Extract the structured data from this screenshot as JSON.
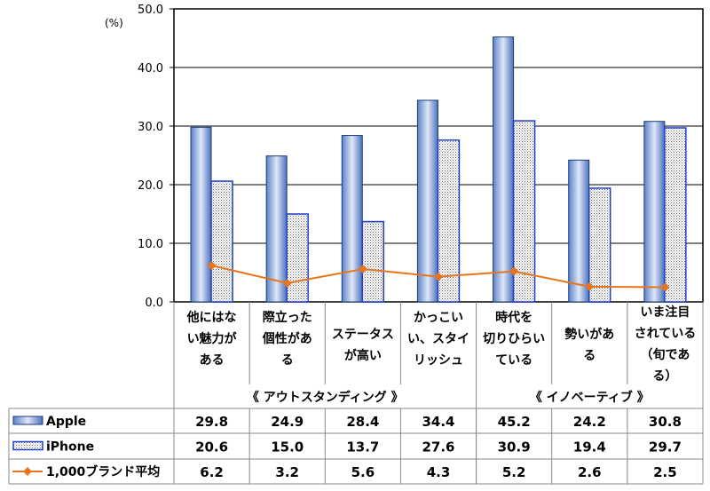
{
  "chart_data": {
    "type": "bar",
    "unit_label": "(%)",
    "ylim": [
      0,
      50
    ],
    "yticks": [
      "0.0",
      "10.0",
      "20.0",
      "30.0",
      "40.0",
      "50.0"
    ],
    "categories": [
      [
        "他にはな",
        "い魅力が",
        "ある"
      ],
      [
        "際立った",
        "個性があ",
        "る"
      ],
      [
        "ステータス",
        "が高い"
      ],
      [
        "かっこい",
        "い、スタイ",
        "リッシュ"
      ],
      [
        "時代を",
        "切りひらい",
        "ている"
      ],
      [
        "勢いがあ",
        "る"
      ],
      [
        "いま注目",
        "されている",
        "（旬であ",
        "る）"
      ]
    ],
    "groups": [
      {
        "label": "《 アウトスタンディング 》",
        "span": [
          0,
          3
        ]
      },
      {
        "label": "《 イノベーティブ 》",
        "span": [
          4,
          6
        ]
      }
    ],
    "series": [
      {
        "name": "Apple",
        "type": "bar",
        "values": [
          29.8,
          24.9,
          28.4,
          34.4,
          45.2,
          24.2,
          30.8
        ],
        "labels": [
          "29.8",
          "24.9",
          "28.4",
          "34.4",
          "45.2",
          "24.2",
          "30.8"
        ]
      },
      {
        "name": "iPhone",
        "type": "bar",
        "values": [
          20.6,
          15.0,
          13.7,
          27.6,
          30.9,
          19.4,
          29.7
        ],
        "labels": [
          "20.6",
          "15.0",
          "13.7",
          "27.6",
          "30.9",
          "19.4",
          "29.7"
        ]
      },
      {
        "name": "1,000ブランド平均",
        "type": "line",
        "values": [
          6.2,
          3.2,
          5.6,
          4.3,
          5.2,
          2.6,
          2.5
        ],
        "labels": [
          "6.2",
          "3.2",
          "5.6",
          "4.3",
          "5.2",
          "2.6",
          "2.5"
        ]
      }
    ],
    "colors": {
      "apple": "#4a78c8",
      "iphone": "#1f3fd0",
      "line": "#e8741c"
    }
  }
}
